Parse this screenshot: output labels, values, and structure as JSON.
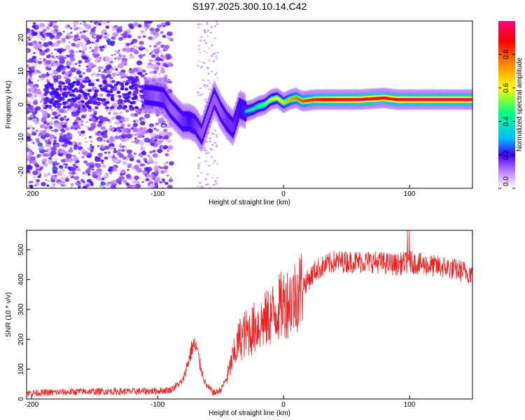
{
  "title": "S197.2025.300.10.14.C42",
  "chart_data": [
    {
      "type": "heatmap",
      "name": "spectrogram",
      "xlabel": "Height of straight line (km)",
      "ylabel": "Frequency (Hz)",
      "xlim": [
        -204,
        150
      ],
      "ylim": [
        -25,
        25
      ],
      "xticks": [
        -200,
        -100,
        0,
        100
      ],
      "yticks": [
        -20,
        -10,
        0,
        10,
        20
      ],
      "colorbar": {
        "label": "Normalized spectral amplitude",
        "range": [
          0,
          1
        ],
        "ticks": [
          "0.0",
          "0.2",
          "0.4",
          "0.6",
          "0.8"
        ],
        "tick_values": [
          0.0,
          0.2,
          0.4,
          0.6,
          0.8
        ]
      },
      "ridge": [
        {
          "x": -110,
          "freq": 3.0,
          "amp": 0.25
        },
        {
          "x": -100,
          "freq": 2.5,
          "amp": 0.2
        },
        {
          "x": -95,
          "freq": 2.0,
          "amp": 0.25
        },
        {
          "x": -90,
          "freq": -1.0,
          "amp": 0.2
        },
        {
          "x": -85,
          "freq": -3.0,
          "amp": 0.2
        },
        {
          "x": -80,
          "freq": -5.0,
          "amp": 0.25
        },
        {
          "x": -75,
          "freq": -5.0,
          "amp": 0.3
        },
        {
          "x": -70,
          "freq": -6.0,
          "amp": 0.25
        },
        {
          "x": -65,
          "freq": -9.0,
          "amp": 0.2
        },
        {
          "x": -55,
          "freq": 2.0,
          "amp": 0.2
        },
        {
          "x": -50,
          "freq": -2.0,
          "amp": 0.2
        },
        {
          "x": -45,
          "freq": -5.0,
          "amp": 0.25
        },
        {
          "x": -40,
          "freq": -7.0,
          "amp": 0.25
        },
        {
          "x": -35,
          "freq": -1.0,
          "amp": 0.3
        },
        {
          "x": -30,
          "freq": -2.0,
          "amp": 0.35
        },
        {
          "x": -25,
          "freq": -1.5,
          "amp": 0.4
        },
        {
          "x": -20,
          "freq": -0.5,
          "amp": 0.45
        },
        {
          "x": -15,
          "freq": 0.0,
          "amp": 0.5
        },
        {
          "x": -10,
          "freq": 1.5,
          "amp": 0.55
        },
        {
          "x": -5,
          "freq": 2.0,
          "amp": 0.6
        },
        {
          "x": 0,
          "freq": 0.5,
          "amp": 0.65
        },
        {
          "x": 5,
          "freq": 1.5,
          "amp": 0.7
        },
        {
          "x": 10,
          "freq": 2.0,
          "amp": 0.75
        },
        {
          "x": 15,
          "freq": 1.0,
          "amp": 0.8
        },
        {
          "x": 25,
          "freq": 1.5,
          "amp": 0.85
        },
        {
          "x": 40,
          "freq": 1.5,
          "amp": 0.9
        },
        {
          "x": 60,
          "freq": 1.5,
          "amp": 0.95
        },
        {
          "x": 80,
          "freq": 2.0,
          "amp": 0.95
        },
        {
          "x": 90,
          "freq": 1.5,
          "amp": 0.9
        },
        {
          "x": 100,
          "freq": 1.5,
          "amp": 0.95
        },
        {
          "x": 120,
          "freq": 1.5,
          "amp": 0.95
        },
        {
          "x": 150,
          "freq": 1.5,
          "amp": 0.95
        }
      ]
    },
    {
      "type": "line",
      "name": "snr",
      "xlabel": "Height of straight line (km)",
      "ylabel": "SNR (10 * v/v)",
      "xlim": [
        -204,
        150
      ],
      "ylim": [
        0,
        565
      ],
      "xticks": [
        -200,
        -100,
        0,
        100
      ],
      "yticks": [
        0,
        100,
        200,
        300,
        400,
        500
      ],
      "color": "#f02020",
      "series": [
        {
          "name": "SNR",
          "x": [
            -204,
            -180,
            -160,
            -140,
            -120,
            -100,
            -90,
            -80,
            -76,
            -72,
            -69,
            -66,
            -62,
            -58,
            -55,
            -50,
            -45,
            -40,
            -35,
            -30,
            -25,
            -20,
            -15,
            -10,
            -5,
            0,
            5,
            10,
            15,
            20,
            25,
            30,
            35,
            40,
            45,
            50,
            60,
            70,
            80,
            90,
            100,
            110,
            120,
            130,
            140,
            150
          ],
          "y": [
            20,
            22,
            25,
            25,
            25,
            27,
            30,
            60,
            120,
            180,
            170,
            110,
            50,
            30,
            20,
            30,
            70,
            140,
            200,
            220,
            230,
            250,
            260,
            280,
            300,
            320,
            330,
            350,
            380,
            400,
            430,
            440,
            450,
            460,
            460,
            460,
            460,
            460,
            455,
            450,
            460,
            450,
            445,
            440,
            430,
            420
          ]
        }
      ]
    }
  ]
}
